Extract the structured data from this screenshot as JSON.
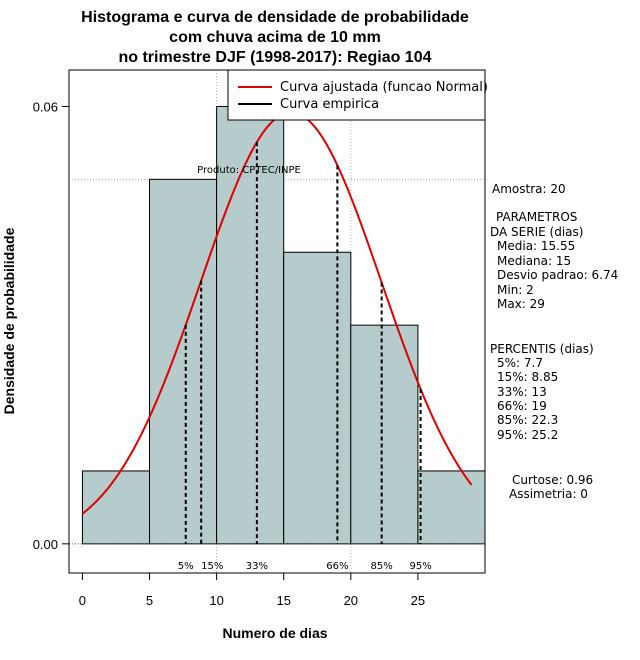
{
  "chart_data": {
    "type": "bar",
    "title": [
      "Histograma e curva de densidade de probabilidade",
      "com chuva acima de 10 mm",
      "no trimestre DJF (1998-2017): Regiao 104"
    ],
    "xlabel": "Numero de dias",
    "ylabel": "Densidade de probabilidade",
    "xlim": [
      -1,
      30
    ],
    "ylim": [
      -0.004,
      0.065
    ],
    "x_ticks": [
      0,
      5,
      10,
      15,
      20,
      25
    ],
    "x_tick_labels": [
      "0",
      "5",
      "10",
      "15",
      "20",
      "25"
    ],
    "y_ticks": [
      0.0,
      0.06
    ],
    "y_tick_labels": [
      "0.00",
      "0.06"
    ],
    "grid_x": [
      10,
      20
    ],
    "grid_y": [
      0.05,
      0.1
    ],
    "bins": [
      {
        "start": 0,
        "end": 5,
        "density": 0.01
      },
      {
        "start": 5,
        "end": 10,
        "density": 0.05
      },
      {
        "start": 10,
        "end": 15,
        "density": 0.06
      },
      {
        "start": 15,
        "end": 20,
        "density": 0.04
      },
      {
        "start": 20,
        "end": 25,
        "density": 0.03
      },
      {
        "start": 25,
        "end": 30,
        "density": 0.01
      }
    ],
    "normal_fit": {
      "mean": 15.55,
      "sd": 6.74,
      "x_from": 0,
      "x_to": 29
    },
    "percentile_lines": [
      {
        "label": "5%",
        "x": 7.7
      },
      {
        "label": "15%",
        "x": 8.85
      },
      {
        "label": "33%",
        "x": 13
      },
      {
        "label": "66%",
        "x": 19
      },
      {
        "label": "85%",
        "x": 22.3
      },
      {
        "label": "95%",
        "x": 25.2
      }
    ],
    "legend": {
      "position": "top-right",
      "entries": [
        {
          "label": "Curva ajustada (funcao Normal)",
          "color": "#e00000"
        },
        {
          "label": "Curva empirica",
          "color": "#000000"
        }
      ]
    },
    "annotation": "Produto: CPTEC/INPE",
    "colors": {
      "bar_fill": "#b6cccc",
      "curve": "#e00000",
      "grid": "#b0b0b0"
    }
  },
  "stats_panel": {
    "sample": "Amostra: 20",
    "params_title_1": "PARAMETROS",
    "params_title_2": "DA SERIE (dias)",
    "params": [
      "Media: 15.55",
      "Mediana: 15",
      "Desvio padrao: 6.74",
      "Min: 2",
      "Max: 29"
    ],
    "percentis_title": "PERCENTIS (dias)",
    "percentis": [
      "5%: 7.7",
      "15%: 8.85",
      "33%: 13",
      "66%: 19",
      "85%: 22.3",
      "95%: 25.2"
    ],
    "curtose": "Curtose: 0.96",
    "assimetria": "Assimetria: 0"
  }
}
